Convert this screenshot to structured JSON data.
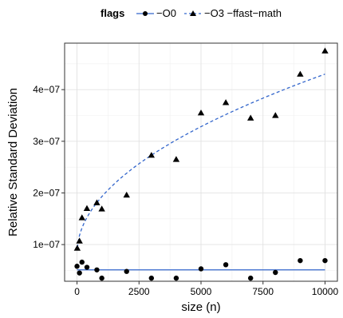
{
  "chart_data": {
    "type": "scatter",
    "xlabel": "size (n)",
    "ylabel": "Relative Standard Deviation",
    "xlim": [
      -500,
      10500
    ],
    "ylim": [
      2.9e-08,
      4.9e-07
    ],
    "x_ticks": [
      0,
      2500,
      5000,
      7500,
      10000
    ],
    "x_tick_labels": [
      "0",
      "2500",
      "5000",
      "7500",
      "10000"
    ],
    "y_ticks": [
      1e-07,
      2e-07,
      3e-07,
      4e-07
    ],
    "y_tick_labels": [
      "1e−07",
      "2e−07",
      "3e−07",
      "4e−07"
    ],
    "grid": true,
    "legend": {
      "title": "flags",
      "position": "top",
      "entries": [
        "−O0",
        "−O3 −ffast−math"
      ]
    },
    "series": [
      {
        "name": "−O0",
        "marker": "circle",
        "line_style": "solid",
        "color": "#3366cc",
        "points": [
          {
            "x": 0,
            "y": 5.8e-08
          },
          {
            "x": 100,
            "y": 4.5e-08
          },
          {
            "x": 200,
            "y": 6.6e-08
          },
          {
            "x": 400,
            "y": 5.6e-08
          },
          {
            "x": 800,
            "y": 5.1e-08
          },
          {
            "x": 1000,
            "y": 3.5e-08
          },
          {
            "x": 2000,
            "y": 4.8e-08
          },
          {
            "x": 3000,
            "y": 3.5e-08
          },
          {
            "x": 4000,
            "y": 3.5e-08
          },
          {
            "x": 5000,
            "y": 5.3e-08
          },
          {
            "x": 6000,
            "y": 6.1e-08
          },
          {
            "x": 7000,
            "y": 3.5e-08
          },
          {
            "x": 8000,
            "y": 4.6e-08
          },
          {
            "x": 9000,
            "y": 6.9e-08
          },
          {
            "x": 10000,
            "y": 6.9e-08
          }
        ],
        "fit": {
          "type": "constant",
          "y": 5.1e-08
        }
      },
      {
        "name": "−O3 −ffast−math",
        "marker": "triangle",
        "line_style": "dashed",
        "color": "#3366cc",
        "points": [
          {
            "x": 10,
            "y": 9.3e-08
          },
          {
            "x": 100,
            "y": 1.07e-07
          },
          {
            "x": 200,
            "y": 1.52e-07
          },
          {
            "x": 400,
            "y": 1.7e-07
          },
          {
            "x": 800,
            "y": 1.81e-07
          },
          {
            "x": 1000,
            "y": 1.69e-07
          },
          {
            "x": 2000,
            "y": 1.96e-07
          },
          {
            "x": 3000,
            "y": 2.73e-07
          },
          {
            "x": 4000,
            "y": 2.65e-07
          },
          {
            "x": 5000,
            "y": 3.55e-07
          },
          {
            "x": 6000,
            "y": 3.75e-07
          },
          {
            "x": 7000,
            "y": 3.45e-07
          },
          {
            "x": 8000,
            "y": 3.5e-07
          },
          {
            "x": 9000,
            "y": 4.3e-07
          },
          {
            "x": 10000,
            "y": 4.75e-07
          }
        ],
        "fit": {
          "type": "sqrt",
          "x_start": 10,
          "x_end": 10000,
          "a": 8.3e-08,
          "b": 3.47e-09
        }
      }
    ]
  }
}
